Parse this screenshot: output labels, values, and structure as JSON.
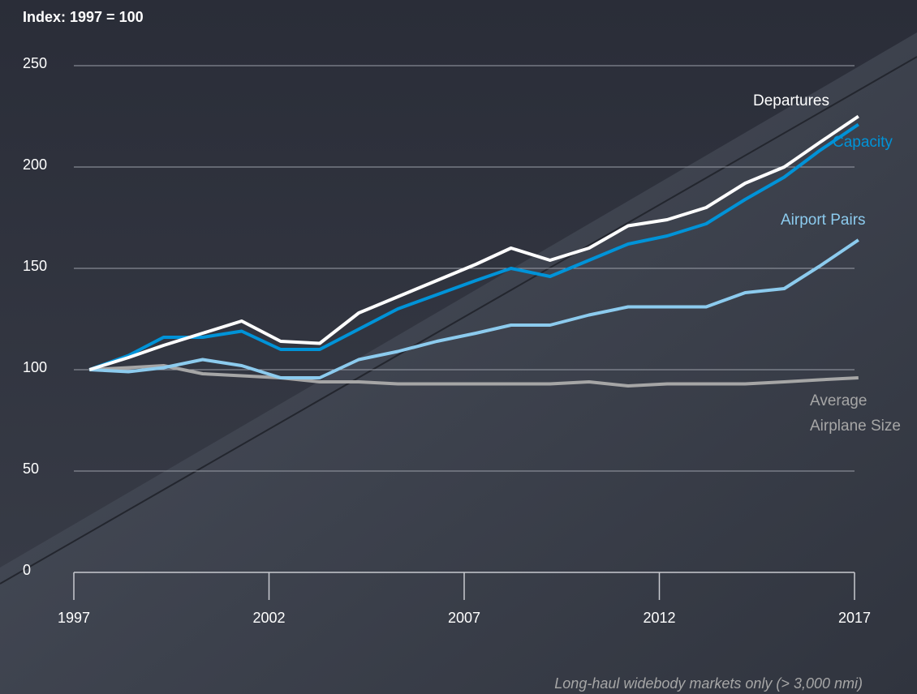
{
  "chart_data": {
    "type": "line",
    "ylabel": "Index: 1997 = 100",
    "note": "Long-haul widebody markets only (> 3,000 nmi)",
    "x": [
      1997.4,
      1998.4,
      1999.3,
      2000.3,
      2001.3,
      2002.3,
      2003.3,
      2004.3,
      2005.3,
      2006.3,
      2007.3,
      2008.2,
      2009.2,
      2010.2,
      2011.2,
      2012.2,
      2013.2,
      2014.2,
      2015.2,
      2016.1,
      2017.1
    ],
    "series": [
      {
        "name": "Departures",
        "color": "#ffffff",
        "values": [
          100,
          106,
          112,
          118,
          124,
          114,
          113,
          128,
          136,
          144,
          152,
          160,
          154,
          160,
          171,
          174,
          180,
          192,
          200,
          212,
          225
        ]
      },
      {
        "name": "Capacity",
        "color": "#0093d8",
        "values": [
          100,
          107,
          116,
          116,
          119,
          110,
          110,
          120,
          130,
          137,
          144,
          150,
          146,
          154,
          162,
          166,
          172,
          184,
          195,
          208,
          221
        ]
      },
      {
        "name": "Airport Pairs",
        "color": "#8ccbee",
        "values": [
          100,
          99,
          101,
          105,
          102,
          96,
          96,
          105,
          109,
          114,
          118,
          122,
          122,
          127,
          131,
          131,
          131,
          138,
          140,
          151,
          164
        ]
      },
      {
        "name": "Average Airplane Size",
        "color": "#a6a6a6",
        "values": [
          100,
          101,
          102,
          98,
          97,
          96,
          94,
          94,
          93,
          93,
          93,
          93,
          93,
          94,
          92,
          93,
          93,
          93,
          94,
          95,
          96
        ]
      }
    ],
    "xlim": [
      1997,
      2017
    ],
    "xticks": [
      1997,
      2002,
      2007,
      2012,
      2017
    ],
    "ylim": [
      0,
      250
    ],
    "yticks": [
      0,
      50,
      100,
      150,
      200,
      250
    ],
    "grid": true
  }
}
